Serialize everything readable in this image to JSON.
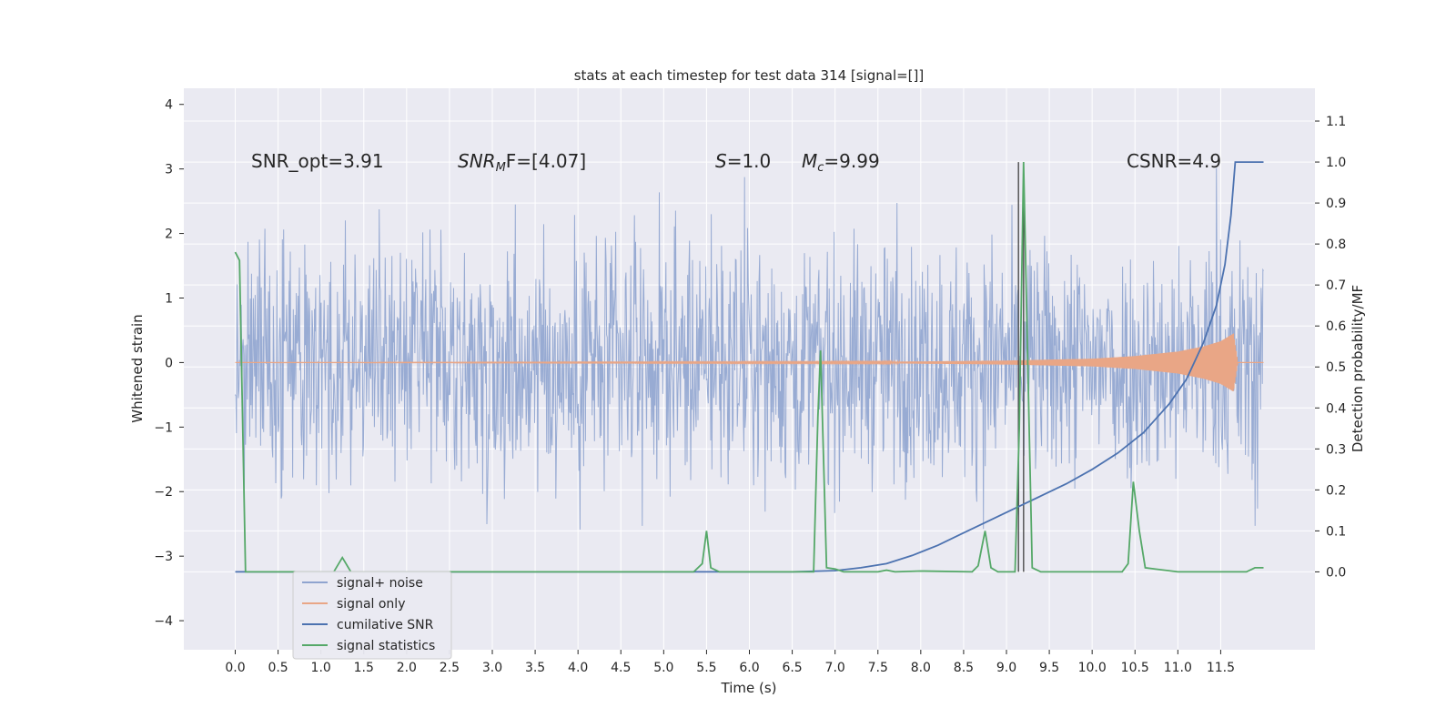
{
  "chart_data": {
    "type": "line",
    "title": "stats at each timestep for test data 314 [signal=[]]",
    "xlabel": "Time (s)",
    "ylabel_left": "Whitened strain",
    "ylabel_right": "Detection probability/MF",
    "xlim": [
      -0.6,
      12.6
    ],
    "ylim_left": [
      -4.45,
      4.25
    ],
    "ylim_right": [
      -0.19,
      1.18
    ],
    "x_ticks": [
      "0.0",
      "0.5",
      "1.0",
      "1.5",
      "2.0",
      "2.5",
      "3.0",
      "3.5",
      "4.0",
      "4.5",
      "5.0",
      "5.5",
      "6.0",
      "6.5",
      "7.0",
      "7.5",
      "8.0",
      "8.5",
      "9.0",
      "9.5",
      "10.0",
      "10.5",
      "11.0",
      "11.5"
    ],
    "y_ticks_left": [
      "4",
      "3",
      "2",
      "1",
      "0",
      "−1",
      "−2",
      "−3",
      "−4"
    ],
    "y_ticks_right": [
      "1.1",
      "1.0",
      "0.9",
      "0.8",
      "0.7",
      "0.6",
      "0.5",
      "0.4",
      "0.3",
      "0.2",
      "0.1",
      "0.0"
    ],
    "grid": true,
    "legend_position": "lower-left",
    "annotations": {
      "snr_opt": "SNR_opt=3.91",
      "snr_mf_main": "SNR",
      "snr_mf_sub": "M",
      "snr_mf_rest": "F=[4.07]",
      "s_main": "S",
      "s_rest": "=1.0",
      "mc_main": "M",
      "mc_sub": "c",
      "mc_rest": "=9.99",
      "csnr": "CSNR=4.9"
    },
    "vertical_lines": [
      9.14,
      9.2
    ],
    "series": [
      {
        "name": "signal+ noise",
        "axis": "left",
        "color": "#8fa4cf",
        "description_values": "noise band approx ±2.2 with spikes up to ±3.9",
        "t_range": [
          0.0,
          12.0
        ]
      },
      {
        "name": "signal only",
        "axis": "left",
        "color": "#e9a686",
        "envelope": [
          [
            0.0,
            0.0
          ],
          [
            7.5,
            0.01
          ],
          [
            9.0,
            0.03
          ],
          [
            10.0,
            0.06
          ],
          [
            10.5,
            0.1
          ],
          [
            11.0,
            0.17
          ],
          [
            11.3,
            0.25
          ],
          [
            11.5,
            0.33
          ],
          [
            11.65,
            0.45
          ],
          [
            11.7,
            0.0
          ],
          [
            12.0,
            0.0
          ]
        ]
      },
      {
        "name": "cumilative SNR",
        "axis": "right",
        "color": "#4c72b0",
        "x": [
          0.0,
          6.5,
          7.0,
          7.3,
          7.6,
          7.9,
          8.2,
          8.5,
          8.8,
          9.1,
          9.4,
          9.7,
          10.0,
          10.3,
          10.6,
          10.9,
          11.1,
          11.3,
          11.45,
          11.55,
          11.62,
          11.67,
          12.0
        ],
        "y": [
          0.0,
          0.0,
          0.003,
          0.01,
          0.02,
          0.04,
          0.065,
          0.095,
          0.125,
          0.155,
          0.185,
          0.215,
          0.25,
          0.29,
          0.34,
          0.41,
          0.47,
          0.56,
          0.65,
          0.75,
          0.87,
          1.0,
          1.0
        ]
      },
      {
        "name": "signal statistics",
        "axis": "right",
        "color": "#55a868",
        "x": [
          0.0,
          0.05,
          0.12,
          0.2,
          1.15,
          1.25,
          1.35,
          1.45,
          5.35,
          5.45,
          5.5,
          5.55,
          5.65,
          6.75,
          6.8,
          6.83,
          6.9,
          7.0,
          7.1,
          7.5,
          7.6,
          7.7,
          8.0,
          8.6,
          8.67,
          8.75,
          8.82,
          8.9,
          9.1,
          9.15,
          9.2,
          9.25,
          9.3,
          9.4,
          10.35,
          10.42,
          10.48,
          10.55,
          10.62,
          11.0,
          11.8,
          11.9,
          12.0
        ],
        "y": [
          0.78,
          0.76,
          0.0,
          0.0,
          0.0,
          0.035,
          0.0,
          0.0,
          0.0,
          0.02,
          0.1,
          0.01,
          0.0,
          0.0,
          0.38,
          0.54,
          0.01,
          0.007,
          0.0,
          0.0,
          0.004,
          0.0,
          0.002,
          0.0,
          0.015,
          0.1,
          0.01,
          0.0,
          0.0,
          0.35,
          1.0,
          0.5,
          0.01,
          0.0,
          0.0,
          0.02,
          0.22,
          0.1,
          0.01,
          0.0,
          0.0,
          0.01,
          0.01
        ]
      }
    ]
  },
  "legend": {
    "item0": "signal+ noise",
    "item1": "signal only",
    "item2": "cumilative SNR",
    "item3": "signal statistics"
  },
  "colors": {
    "plot_bg": "#eaeaf2",
    "grid": "#ffffff",
    "noise": "#8fa4cf",
    "signal": "#e9a686",
    "csnr": "#4c72b0",
    "stats": "#55a868",
    "vline": "#404040"
  }
}
